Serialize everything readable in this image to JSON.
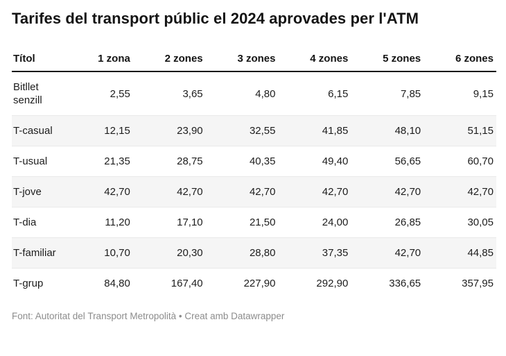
{
  "title": "Tarifes del transport públic el 2024 aprovades per l'ATM",
  "table": {
    "columns": [
      "Títol",
      "1 zona",
      "2 zones",
      "3 zones",
      "4 zones",
      "5 zones",
      "6 zones"
    ],
    "rows": [
      {
        "label": "Bitllet senzill",
        "values": [
          "2,55",
          "3,65",
          "4,80",
          "6,15",
          "7,85",
          "9,15"
        ]
      },
      {
        "label": "T-casual",
        "values": [
          "12,15",
          "23,90",
          "32,55",
          "41,85",
          "48,10",
          "51,15"
        ]
      },
      {
        "label": "T-usual",
        "values": [
          "21,35",
          "28,75",
          "40,35",
          "49,40",
          "56,65",
          "60,70"
        ]
      },
      {
        "label": "T-jove",
        "values": [
          "42,70",
          "42,70",
          "42,70",
          "42,70",
          "42,70",
          "42,70"
        ]
      },
      {
        "label": "T-dia",
        "values": [
          "11,20",
          "17,10",
          "21,50",
          "24,00",
          "26,85",
          "30,05"
        ]
      },
      {
        "label": "T-familiar",
        "values": [
          "10,70",
          "20,30",
          "28,80",
          "37,35",
          "42,70",
          "44,85"
        ]
      },
      {
        "label": "T-grup",
        "values": [
          "84,80",
          "167,40",
          "227,90",
          "292,90",
          "336,65",
          "357,95"
        ]
      }
    ]
  },
  "footer": {
    "source": "Font: Autoritat del Transport Metropolità",
    "separator": " • ",
    "attribution": "Creat amb Datawrapper"
  },
  "colors": {
    "background": "#ffffff",
    "title_text": "#141414",
    "body_text": "#1d1d1d",
    "header_border": "#141414",
    "zebra_stripe": "#f5f5f5",
    "row_border": "#e9e9e9",
    "footer_text": "#8c8c8c"
  },
  "chart_data": {
    "type": "table",
    "title": "Tarifes del transport públic el 2024 aprovades per l'ATM",
    "columns": [
      "Títol",
      "1 zona",
      "2 zones",
      "3 zones",
      "4 zones",
      "5 zones",
      "6 zones"
    ],
    "rows": [
      [
        "Bitllet senzill",
        2.55,
        3.65,
        4.8,
        6.15,
        7.85,
        9.15
      ],
      [
        "T-casual",
        12.15,
        23.9,
        32.55,
        41.85,
        48.1,
        51.15
      ],
      [
        "T-usual",
        21.35,
        28.75,
        40.35,
        49.4,
        56.65,
        60.7
      ],
      [
        "T-jove",
        42.7,
        42.7,
        42.7,
        42.7,
        42.7,
        42.7
      ],
      [
        "T-dia",
        11.2,
        17.1,
        21.5,
        24.0,
        26.85,
        30.05
      ],
      [
        "T-familiar",
        10.7,
        20.3,
        28.8,
        37.35,
        42.7,
        44.85
      ],
      [
        "T-grup",
        84.8,
        167.4,
        227.9,
        292.9,
        336.65,
        357.95
      ]
    ],
    "zebra_striped_rows": [
      "T-casual",
      "T-jove",
      "T-familiar"
    ],
    "source": "Font: Autoritat del Transport Metropolità",
    "attribution": "Creat amb Datawrapper"
  }
}
